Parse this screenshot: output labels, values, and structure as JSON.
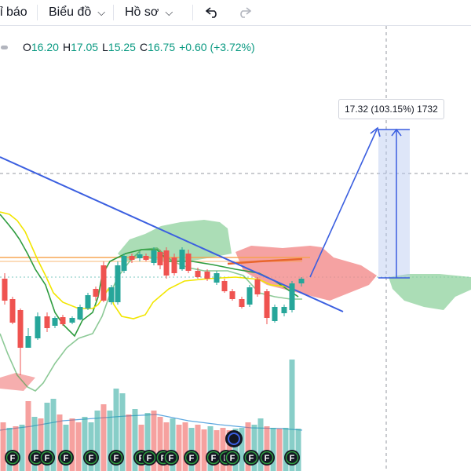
{
  "toolbar": {
    "indicators_label": "ỉ báo",
    "chart_menu_label": "Biểu đồ",
    "profile_menu_label": "Hồ sơ"
  },
  "legend": {
    "open_key": "O",
    "open": "16.20",
    "high_key": "H",
    "high": "17.05",
    "low_key": "L",
    "low": "15.25",
    "close_key": "C",
    "close": "16.75",
    "change": "+0.60 (+3.72%)"
  },
  "measure_tooltip": "17.32 (103.15%) 1732",
  "event_markers": [
    "F",
    "F",
    "F",
    "F",
    "F",
    "F",
    "F",
    "F",
    "F",
    "F",
    "F",
    "F",
    "F",
    "F",
    "F",
    "F",
    "F",
    "F",
    "F"
  ],
  "colors": {
    "up": "#26a69a",
    "down": "#ef5350",
    "trendline": "#3b5fe0",
    "conversion": "#2e9c3f",
    "base_line": "#f2e600",
    "resistance": "#f7a24a"
  }
}
